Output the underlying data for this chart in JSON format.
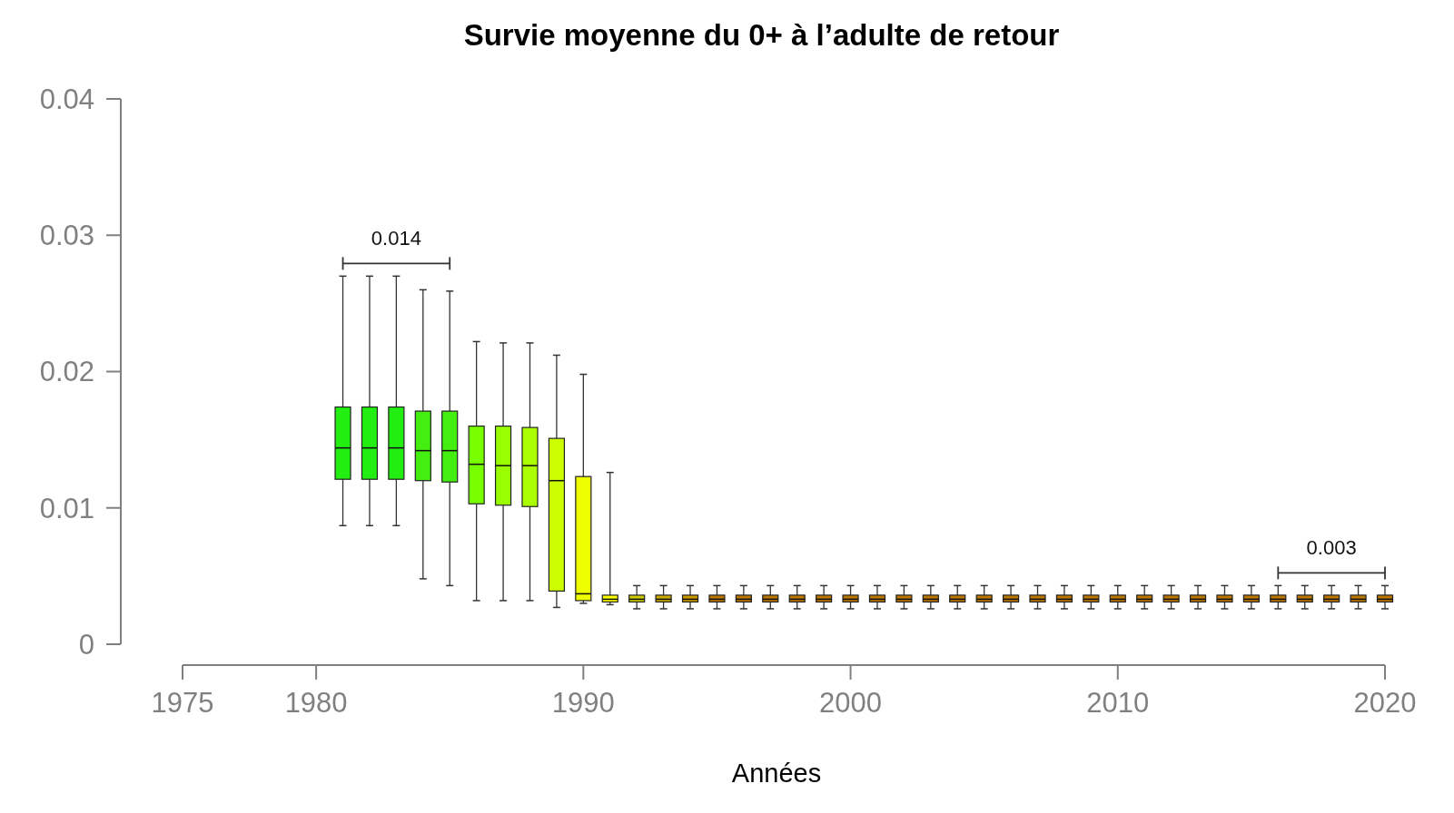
{
  "chart_data": {
    "type": "box",
    "title": "Survie moyenne du 0+ à l’adulte de retour",
    "xlabel": "Années",
    "x": [
      1981,
      1982,
      1983,
      1984,
      1985,
      1986,
      1987,
      1988,
      1989,
      1990,
      1991,
      1992,
      1993,
      1994,
      1995,
      1996,
      1997,
      1998,
      1999,
      2000,
      2001,
      2002,
      2003,
      2004,
      2005,
      2006,
      2007,
      2008,
      2009,
      2010,
      2011,
      2012,
      2013,
      2014,
      2015,
      2016,
      2017,
      2018,
      2019,
      2020
    ],
    "boxes": [
      {
        "low": 0.0087,
        "q1": 0.0121,
        "median": 0.0144,
        "q3": 0.0174,
        "high": 0.027
      },
      {
        "low": 0.0087,
        "q1": 0.0121,
        "median": 0.0144,
        "q3": 0.0174,
        "high": 0.027
      },
      {
        "low": 0.0087,
        "q1": 0.0121,
        "median": 0.0144,
        "q3": 0.0174,
        "high": 0.027
      },
      {
        "low": 0.0048,
        "q1": 0.012,
        "median": 0.0142,
        "q3": 0.0171,
        "high": 0.026
      },
      {
        "low": 0.0043,
        "q1": 0.0119,
        "median": 0.0142,
        "q3": 0.0171,
        "high": 0.0259
      },
      {
        "low": 0.0032,
        "q1": 0.0103,
        "median": 0.0132,
        "q3": 0.016,
        "high": 0.0222
      },
      {
        "low": 0.0032,
        "q1": 0.0102,
        "median": 0.0131,
        "q3": 0.016,
        "high": 0.0221
      },
      {
        "low": 0.0032,
        "q1": 0.0101,
        "median": 0.0131,
        "q3": 0.0159,
        "high": 0.0221
      },
      {
        "low": 0.0027,
        "q1": 0.0039,
        "median": 0.012,
        "q3": 0.0151,
        "high": 0.0212
      },
      {
        "low": 0.003,
        "q1": 0.0032,
        "median": 0.0037,
        "q3": 0.0123,
        "high": 0.0198
      },
      {
        "low": 0.0029,
        "q1": 0.0031,
        "median": 0.0033,
        "q3": 0.0036,
        "high": 0.0126
      },
      {
        "low": 0.0026,
        "q1": 0.0031,
        "median": 0.0033,
        "q3": 0.0036,
        "high": 0.0043
      },
      {
        "low": 0.0026,
        "q1": 0.0031,
        "median": 0.0033,
        "q3": 0.0036,
        "high": 0.0043
      },
      {
        "low": 0.0026,
        "q1": 0.0031,
        "median": 0.0033,
        "q3": 0.0036,
        "high": 0.0043
      },
      {
        "low": 0.0026,
        "q1": 0.0031,
        "median": 0.0033,
        "q3": 0.0036,
        "high": 0.0043
      },
      {
        "low": 0.0026,
        "q1": 0.0031,
        "median": 0.0033,
        "q3": 0.0036,
        "high": 0.0043
      },
      {
        "low": 0.0026,
        "q1": 0.0031,
        "median": 0.0033,
        "q3": 0.0036,
        "high": 0.0043
      },
      {
        "low": 0.0026,
        "q1": 0.0031,
        "median": 0.0033,
        "q3": 0.0036,
        "high": 0.0043
      },
      {
        "low": 0.0026,
        "q1": 0.0031,
        "median": 0.0033,
        "q3": 0.0036,
        "high": 0.0043
      },
      {
        "low": 0.0026,
        "q1": 0.0031,
        "median": 0.0033,
        "q3": 0.0036,
        "high": 0.0043
      },
      {
        "low": 0.0026,
        "q1": 0.0031,
        "median": 0.0033,
        "q3": 0.0036,
        "high": 0.0043
      },
      {
        "low": 0.0026,
        "q1": 0.0031,
        "median": 0.0033,
        "q3": 0.0036,
        "high": 0.0043
      },
      {
        "low": 0.0026,
        "q1": 0.0031,
        "median": 0.0033,
        "q3": 0.0036,
        "high": 0.0043
      },
      {
        "low": 0.0026,
        "q1": 0.0031,
        "median": 0.0033,
        "q3": 0.0036,
        "high": 0.0043
      },
      {
        "low": 0.0026,
        "q1": 0.0031,
        "median": 0.0033,
        "q3": 0.0036,
        "high": 0.0043
      },
      {
        "low": 0.0026,
        "q1": 0.0031,
        "median": 0.0033,
        "q3": 0.0036,
        "high": 0.0043
      },
      {
        "low": 0.0026,
        "q1": 0.0031,
        "median": 0.0033,
        "q3": 0.0036,
        "high": 0.0043
      },
      {
        "low": 0.0026,
        "q1": 0.0031,
        "median": 0.0033,
        "q3": 0.0036,
        "high": 0.0043
      },
      {
        "low": 0.0026,
        "q1": 0.0031,
        "median": 0.0033,
        "q3": 0.0036,
        "high": 0.0043
      },
      {
        "low": 0.0026,
        "q1": 0.0031,
        "median": 0.0033,
        "q3": 0.0036,
        "high": 0.0043
      },
      {
        "low": 0.0026,
        "q1": 0.0031,
        "median": 0.0033,
        "q3": 0.0036,
        "high": 0.0043
      },
      {
        "low": 0.0026,
        "q1": 0.0031,
        "median": 0.0033,
        "q3": 0.0036,
        "high": 0.0043
      },
      {
        "low": 0.0026,
        "q1": 0.0031,
        "median": 0.0033,
        "q3": 0.0036,
        "high": 0.0043
      },
      {
        "low": 0.0026,
        "q1": 0.0031,
        "median": 0.0033,
        "q3": 0.0036,
        "high": 0.0043
      },
      {
        "low": 0.0026,
        "q1": 0.0031,
        "median": 0.0033,
        "q3": 0.0036,
        "high": 0.0043
      },
      {
        "low": 0.0026,
        "q1": 0.0031,
        "median": 0.0033,
        "q3": 0.0036,
        "high": 0.0043
      },
      {
        "low": 0.0026,
        "q1": 0.0031,
        "median": 0.0033,
        "q3": 0.0036,
        "high": 0.0043
      },
      {
        "low": 0.0026,
        "q1": 0.0031,
        "median": 0.0033,
        "q3": 0.0036,
        "high": 0.0043
      },
      {
        "low": 0.0026,
        "q1": 0.0031,
        "median": 0.0033,
        "q3": 0.0036,
        "high": 0.0043
      },
      {
        "low": 0.0026,
        "q1": 0.0031,
        "median": 0.0033,
        "q3": 0.0036,
        "high": 0.0043
      }
    ],
    "colors": [
      "#22ee11",
      "#22ee11",
      "#22ee11",
      "#44ee11",
      "#44ee11",
      "#77ff00",
      "#99ff00",
      "#aaff00",
      "#ccff00",
      "#eeff00",
      "#ffff00",
      "#cccc00",
      "#ccaa00",
      "#cc9900",
      "#bb7700",
      "#bb7700",
      "#bb7700",
      "#bb7700",
      "#bb7700",
      "#bb7700",
      "#bb7700",
      "#bb7700",
      "#bb7700",
      "#bb7700",
      "#bb7700",
      "#bb7700",
      "#bb7700",
      "#bb7700",
      "#bb7700",
      "#bb7700",
      "#bb7700",
      "#bb7700",
      "#bb7700",
      "#bb7700",
      "#bb7700",
      "#bb7700",
      "#bb7700",
      "#bb7700",
      "#bb7700",
      "#bb7700"
    ],
    "annotations": [
      "0.014",
      "0.003"
    ],
    "xlim": [
      1975,
      2020
    ],
    "xticks": [
      1975,
      1980,
      1990,
      2000,
      2010,
      2020
    ],
    "ylim": [
      0,
      0.04
    ],
    "yticks": [
      0,
      0.01,
      0.02,
      0.03,
      0.04
    ],
    "grid": false
  }
}
